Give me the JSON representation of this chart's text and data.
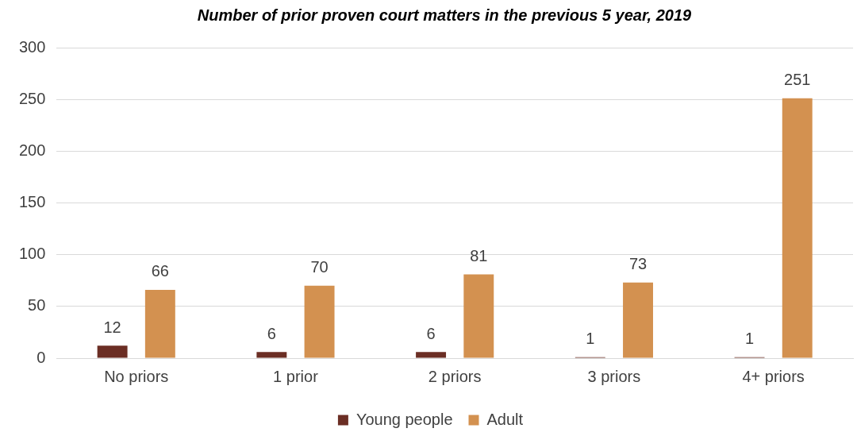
{
  "chart_data": {
    "type": "bar",
    "title": "Number of prior proven court matters in the previous 5 year, 2019",
    "categories": [
      "No priors",
      "1 prior",
      "2 priors",
      "3 priors",
      "4+ priors"
    ],
    "series": [
      {
        "name": "Young people",
        "color": "#6b2e24",
        "values": [
          12,
          6,
          6,
          1,
          1
        ]
      },
      {
        "name": "Adult",
        "color": "#d39150",
        "values": [
          66,
          70,
          81,
          73,
          251
        ]
      }
    ],
    "ylim": [
      0,
      300
    ],
    "yticks": [
      0,
      50,
      100,
      150,
      200,
      250,
      300
    ],
    "grid": "y",
    "legend": "bottom",
    "data_labels": true
  }
}
